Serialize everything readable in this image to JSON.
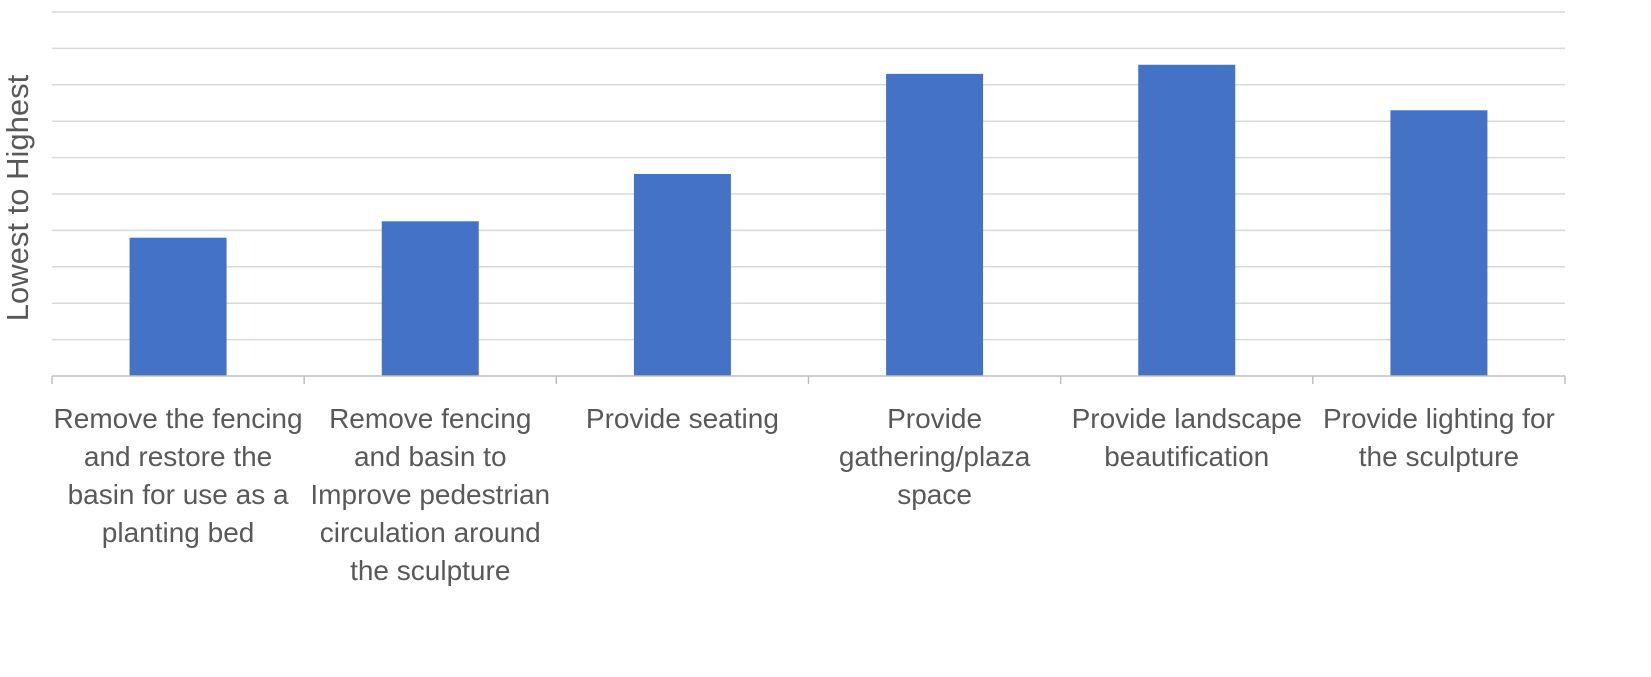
{
  "chart_data": {
    "type": "bar",
    "title": "",
    "xlabel": "",
    "ylabel": "Lowest to Highest",
    "ylim": [
      0,
      10
    ],
    "grid": true,
    "legend": "none",
    "bar_color": "#4472C4",
    "categories": [
      "Remove the fencing and restore the basin for use as a planting bed",
      "Remove fencing and basin to Improve pedestrian circulation around the sculpture",
      "Provide seating",
      "Provide gathering/plaza space",
      "Provide landscape beautification",
      "Provide lighting for the sculpture"
    ],
    "values": [
      3.8,
      4.25,
      5.55,
      8.3,
      8.55,
      7.3
    ]
  }
}
